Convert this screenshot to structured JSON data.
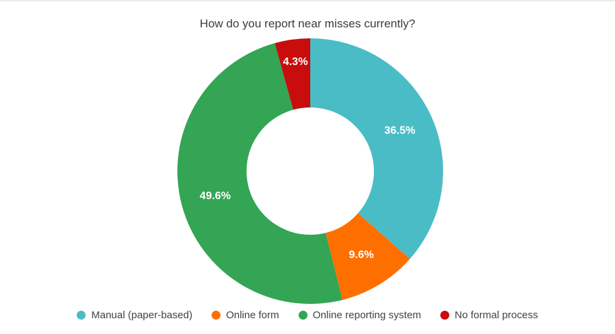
{
  "page": {
    "background_color": "#ffffff",
    "top_edge_color": "#ececec"
  },
  "chart_data": {
    "type": "pie",
    "title": "How do you report near misses currently?",
    "donut_hole_ratio": 0.48,
    "start_angle_deg": 0,
    "direction": "clockwise",
    "legend_position": "bottom",
    "grid": false,
    "slices": [
      {
        "label": "Manual (paper-based)",
        "value": 36.5,
        "display": "36.5%",
        "color": "#4ABCC6"
      },
      {
        "label": "Online form",
        "value": 9.6,
        "display": "9.6%",
        "color": "#FF6F00"
      },
      {
        "label": "Online reporting system",
        "value": 49.6,
        "display": "49.6%",
        "color": "#33A554"
      },
      {
        "label": "No formal process",
        "value": 4.3,
        "display": "4.3%",
        "color": "#C90C0C"
      }
    ],
    "value_label_color": "#ffffff",
    "title_color": "#3b3b3b",
    "legend_text_color": "#424242"
  }
}
